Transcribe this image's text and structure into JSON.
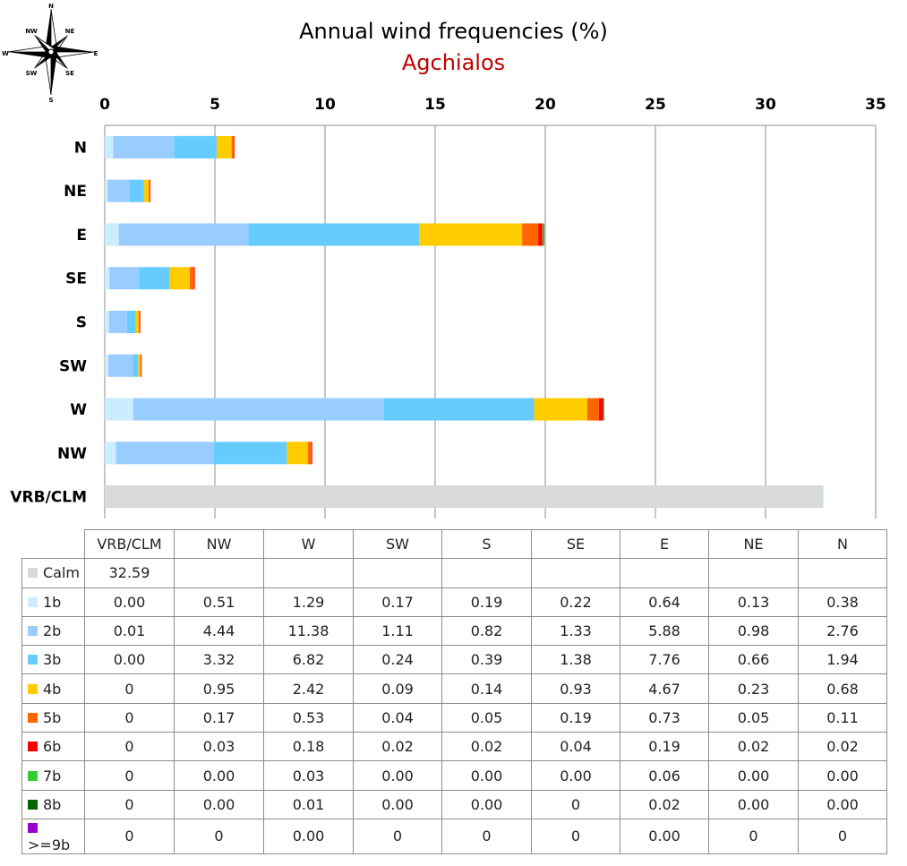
{
  "chart_data": {
    "type": "bar",
    "orientation": "horizontal",
    "stacked": true,
    "title": "Annual wind frequencies (%)",
    "subtitle": "Agchialos",
    "xlim": [
      0,
      35
    ],
    "xticks": [
      0,
      5,
      10,
      15,
      20,
      25,
      30,
      35
    ],
    "grid": true,
    "x_axis_position": "top",
    "categories": [
      "N",
      "NE",
      "E",
      "SE",
      "S",
      "SW",
      "W",
      "NW",
      "VRB/CLM"
    ],
    "table_columns": [
      "VRB/CLM",
      "NW",
      "W",
      "SW",
      "S",
      "SE",
      "E",
      "NE",
      "N"
    ],
    "series": [
      {
        "name": "Calm",
        "color": "#d9d9d9",
        "table": [
          "32.59",
          "",
          "",
          "",
          "",
          "",
          "",
          "",
          ""
        ],
        "values": [
          0,
          0,
          0,
          0,
          0,
          0,
          0,
          0,
          32.59
        ]
      },
      {
        "name": "1b",
        "color": "#ccecff",
        "table": [
          "0.00",
          "0.51",
          "1.29",
          "0.17",
          "0.19",
          "0.22",
          "0.64",
          "0.13",
          "0.38"
        ],
        "values": [
          0.38,
          0.13,
          0.64,
          0.22,
          0.19,
          0.17,
          1.29,
          0.51,
          0.0
        ]
      },
      {
        "name": "2b",
        "color": "#99ccff",
        "table": [
          "0.01",
          "4.44",
          "11.38",
          "1.11",
          "0.82",
          "1.33",
          "5.88",
          "0.98",
          "2.76"
        ],
        "values": [
          2.76,
          0.98,
          5.88,
          1.33,
          0.82,
          1.11,
          11.38,
          4.44,
          0.01
        ]
      },
      {
        "name": "3b",
        "color": "#66ccff",
        "table": [
          "0.00",
          "3.32",
          "6.82",
          "0.24",
          "0.39",
          "1.38",
          "7.76",
          "0.66",
          "1.94"
        ],
        "values": [
          1.94,
          0.66,
          7.76,
          1.38,
          0.39,
          0.24,
          6.82,
          3.32,
          0.0
        ]
      },
      {
        "name": "4b",
        "color": "#ffcc00",
        "table": [
          "0",
          "0.95",
          "2.42",
          "0.09",
          "0.14",
          "0.93",
          "4.67",
          "0.23",
          "0.68"
        ],
        "values": [
          0.68,
          0.23,
          4.67,
          0.93,
          0.14,
          0.09,
          2.42,
          0.95,
          0
        ]
      },
      {
        "name": "5b",
        "color": "#ff6600",
        "table": [
          "0",
          "0.17",
          "0.53",
          "0.04",
          "0.05",
          "0.19",
          "0.73",
          "0.05",
          "0.11"
        ],
        "values": [
          0.11,
          0.05,
          0.73,
          0.19,
          0.05,
          0.04,
          0.53,
          0.17,
          0
        ]
      },
      {
        "name": "6b",
        "color": "#ff0000",
        "table": [
          "0",
          "0.03",
          "0.18",
          "0.02",
          "0.02",
          "0.04",
          "0.19",
          "0.02",
          "0.02"
        ],
        "values": [
          0.02,
          0.02,
          0.19,
          0.04,
          0.02,
          0.02,
          0.18,
          0.03,
          0
        ]
      },
      {
        "name": "7b",
        "color": "#33cc33",
        "table": [
          "0",
          "0.00",
          "0.03",
          "0.00",
          "0.00",
          "0.00",
          "0.06",
          "0.00",
          "0.00"
        ],
        "values": [
          0.0,
          0.0,
          0.06,
          0.0,
          0.0,
          0.0,
          0.03,
          0.0,
          0
        ]
      },
      {
        "name": "8b",
        "color": "#006600",
        "table": [
          "0",
          "0.00",
          "0.01",
          "0.00",
          "0.00",
          "0",
          "0.02",
          "0.00",
          "0.00"
        ],
        "values": [
          0.0,
          0.0,
          0.02,
          0,
          0.0,
          0.0,
          0.01,
          0.0,
          0
        ]
      },
      {
        "name": ">=9b",
        "color": "#9900cc",
        "table": [
          "0",
          "0",
          "0.00",
          "0",
          "0",
          "0",
          "0.00",
          "0",
          "0"
        ],
        "values": [
          0,
          0,
          0.0,
          0,
          0,
          0,
          0.0,
          0,
          0
        ]
      }
    ]
  },
  "compass": {
    "labels": [
      "N",
      "NE",
      "E",
      "SE",
      "S",
      "SW",
      "W",
      "NW"
    ],
    "icon": "compass-rose-icon"
  }
}
